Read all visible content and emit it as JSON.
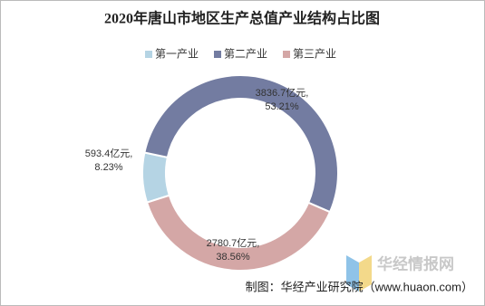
{
  "chart_data": {
    "type": "donut",
    "title": "2020年唐山市地区生产总值产业结构占比图",
    "series": [
      {
        "name": "第一产业",
        "color": "#b5d4e4",
        "values": [
          593.4
        ],
        "value_labels": [
          "593.4亿元,"
        ],
        "percent_labels": [
          "8.23%"
        ]
      },
      {
        "name": "第二产业",
        "color": "#737ca1",
        "values": [
          3836.7
        ],
        "value_labels": [
          "3836.7亿元,"
        ],
        "percent_labels": [
          "53.21%"
        ]
      },
      {
        "name": "第三产业",
        "color": "#d4a7a6",
        "values": [
          2780.7
        ],
        "value_labels": [
          "2780.7亿元,"
        ],
        "percent_labels": [
          "38.56%"
        ]
      }
    ],
    "legend": "top",
    "source": "制图：华经产业研究院（www.huaon.com）",
    "watermark": "华经情报网"
  }
}
